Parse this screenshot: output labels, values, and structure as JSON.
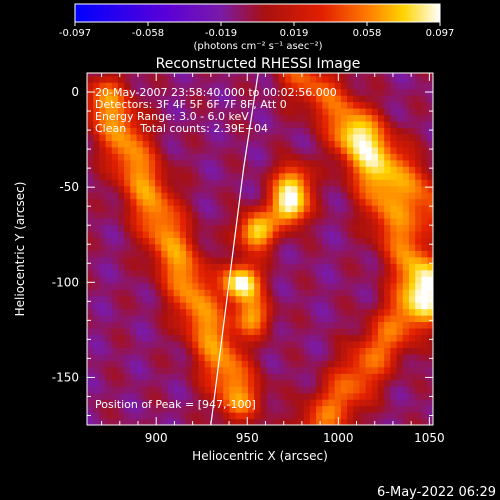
{
  "chart_data": {
    "type": "heatmap",
    "title": "Reconstructed RHESSI Image",
    "xlabel": "Heliocentric X (arcsec)",
    "ylabel": "Heliocentric Y (arcsec)",
    "xlim": [
      862,
      1052
    ],
    "ylim": [
      -175,
      10
    ],
    "x_ticks": [
      900,
      950,
      1000,
      1050
    ],
    "y_ticks": [
      0,
      -50,
      -100,
      -150
    ],
    "colorbar": {
      "label": "(photons cm⁻² s⁻¹ asec⁻²)",
      "range": [
        -0.097,
        0.097
      ],
      "ticks": [
        "-0.097",
        "-0.058",
        "-0.019",
        "0.019",
        "0.058",
        "0.097"
      ],
      "colors": [
        "#0000ff",
        "#5a00d8",
        "#7a1aa8",
        "#a81010",
        "#e32000",
        "#ff7a00",
        "#ffd400",
        "#ffffff"
      ]
    },
    "annotations": [
      "20-May-2007 23:58:40.000 to 00:02:56.000",
      "Detectors: 3F 4F 5F 6F 7F 8F, Att 0",
      "Energy Range: 3.0 - 6.0 keV",
      "Clean    Total counts: 2.39E+04"
    ],
    "peak_label": "Position of Peak = [947,-100]",
    "peak": [
      947,
      -100
    ],
    "sources": [
      {
        "x": 947,
        "y": -100,
        "value": 0.097
      },
      {
        "x": 955,
        "y": -73,
        "value": 0.075
      },
      {
        "x": 973,
        "y": -60,
        "value": 0.085
      },
      {
        "x": 953,
        "y": -118,
        "value": 0.045
      },
      {
        "x": 975,
        "y": -47,
        "value": 0.05
      }
    ],
    "arcs": [
      {
        "x1": 873,
        "y1": -5,
        "x2": 945,
        "y2": -160,
        "value": 0.05
      },
      {
        "x1": 1010,
        "y1": -25,
        "x2": 1050,
        "y2": -110,
        "value": 0.04
      },
      {
        "x1": 990,
        "y1": -175,
        "x2": 1050,
        "y2": -100,
        "value": 0.035
      },
      {
        "x1": 980,
        "y1": 10,
        "x2": 1052,
        "y2": -60,
        "value": 0.03
      }
    ],
    "limb_curve": [
      [
        956,
        10
      ],
      [
        948,
        -40
      ],
      [
        940,
        -100
      ],
      [
        930,
        -175
      ]
    ]
  },
  "footer": {
    "timestamp": "6-May-2022 06:29"
  }
}
